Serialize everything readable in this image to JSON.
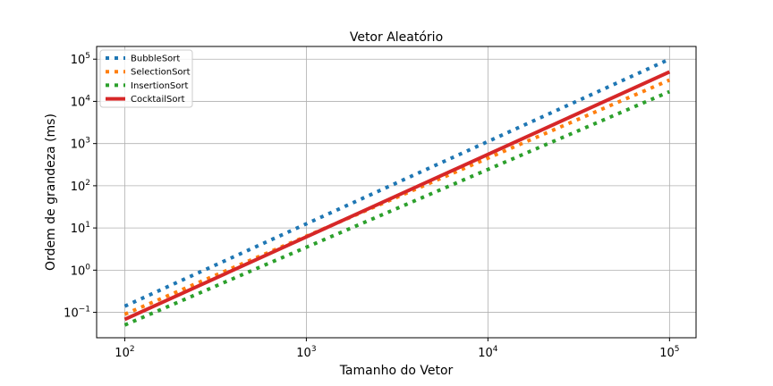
{
  "chart_data": {
    "type": "line",
    "title": "Vetor Aleatório",
    "xlabel": "Tamanho do Vetor",
    "ylabel": "Ordem de grandeza (ms)",
    "x_scale": "log",
    "y_scale": "log",
    "xlim": [
      70,
      140000
    ],
    "ylim": [
      0.025,
      200000
    ],
    "grid": true,
    "legend_position": "top-left",
    "x_ticks": [
      {
        "base": "10",
        "exp": "2",
        "value": 100
      },
      {
        "base": "10",
        "exp": "3",
        "value": 1000
      },
      {
        "base": "10",
        "exp": "4",
        "value": 10000
      },
      {
        "base": "10",
        "exp": "5",
        "value": 100000
      }
    ],
    "y_ticks": [
      {
        "base": "10",
        "exp": "−1",
        "value": 0.1
      },
      {
        "base": "10",
        "exp": "0",
        "value": 1
      },
      {
        "base": "10",
        "exp": "1",
        "value": 10
      },
      {
        "base": "10",
        "exp": "2",
        "value": 100
      },
      {
        "base": "10",
        "exp": "3",
        "value": 1000
      },
      {
        "base": "10",
        "exp": "4",
        "value": 10000
      },
      {
        "base": "10",
        "exp": "5",
        "value": 100000
      }
    ],
    "series": [
      {
        "name": "BubbleSort",
        "style": "dotted",
        "color": "#1f77b4",
        "x": [
          100,
          100000
        ],
        "y": [
          0.14,
          100000
        ]
      },
      {
        "name": "SelectionSort",
        "style": "dotted",
        "color": "#ff7f0e",
        "x": [
          100,
          100000
        ],
        "y": [
          0.09,
          32000
        ]
      },
      {
        "name": "InsertionSort",
        "style": "dotted",
        "color": "#2ca02c",
        "x": [
          100,
          100000
        ],
        "y": [
          0.05,
          17000
        ]
      },
      {
        "name": "CocktailSort",
        "style": "solid",
        "color": "#d62728",
        "x": [
          100,
          100000
        ],
        "y": [
          0.068,
          50000
        ]
      }
    ]
  }
}
